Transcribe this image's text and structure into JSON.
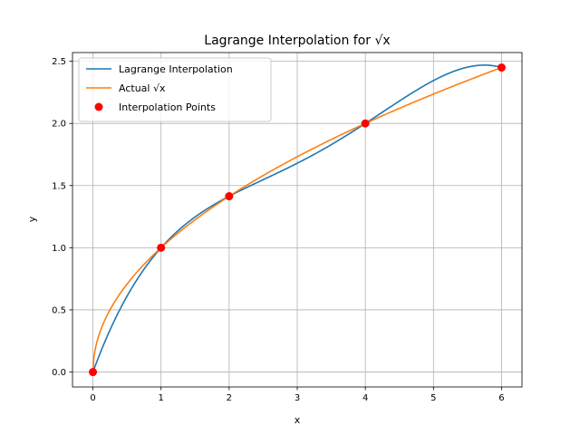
{
  "chart_data": {
    "type": "line",
    "title": "Lagrange Interpolation for √x",
    "xlabel": "x",
    "ylabel": "y",
    "xlim": [
      -0.3,
      6.3
    ],
    "ylim": [
      -0.12,
      2.57
    ],
    "xticks": [
      0,
      1,
      2,
      3,
      4,
      5,
      6
    ],
    "yticks": [
      0.0,
      0.5,
      1.0,
      1.5,
      2.0,
      2.5
    ],
    "xtick_labels": [
      "0",
      "1",
      "2",
      "3",
      "4",
      "5",
      "6"
    ],
    "ytick_labels": [
      "0.0",
      "0.5",
      "1.0",
      "1.5",
      "2.0",
      "2.5"
    ],
    "grid": true,
    "legend_position": "top-left",
    "interpolation_points": {
      "x": [
        0,
        1,
        2,
        4,
        6
      ],
      "y": [
        0,
        1,
        1.4142,
        2,
        2.4495
      ]
    },
    "series": [
      {
        "name": "Lagrange Interpolation",
        "type": "line",
        "color": "#1f77b4"
      },
      {
        "name": "Actual √x",
        "type": "line",
        "color": "#ff7f0e"
      },
      {
        "name": "Interpolation Points",
        "type": "scatter",
        "color": "#ff0000"
      }
    ]
  }
}
